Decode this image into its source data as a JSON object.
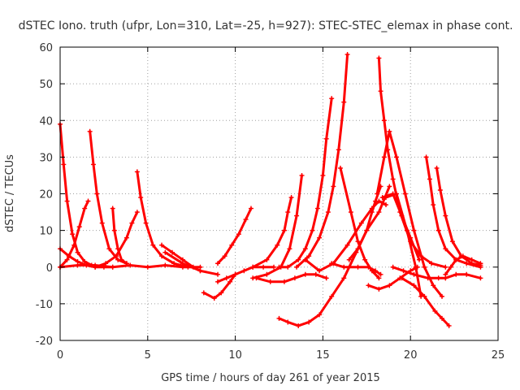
{
  "chart_data": {
    "type": "scatter",
    "title": "dSTEC Iono. truth (ufpr, Lon=310, Lat=-25, h=927): STEC-STEC_elemax in phase cont.",
    "xlabel": "GPS time / hours of day 261 of year 2015",
    "ylabel": "dSTEC  / TECUs",
    "xlim": [
      0,
      25
    ],
    "ylim": [
      -20,
      60
    ],
    "xticks": [
      0,
      5,
      10,
      15,
      20,
      25
    ],
    "yticks": [
      -20,
      -10,
      0,
      10,
      20,
      30,
      40,
      50,
      60
    ],
    "grid": true,
    "marker": "+",
    "color": "#ff0000",
    "series": [
      {
        "x": [
          0.0,
          0.2,
          0.4,
          0.7,
          1.0,
          1.4,
          1.8
        ],
        "y": [
          39,
          28,
          18,
          9,
          4,
          1.5,
          0.5
        ]
      },
      {
        "x": [
          1.7,
          1.9,
          2.1,
          2.4,
          2.8,
          3.3,
          3.8
        ],
        "y": [
          37,
          28,
          20,
          12,
          5,
          2,
          1
        ]
      },
      {
        "x": [
          3.0,
          3.1,
          3.3,
          3.5,
          3.8
        ],
        "y": [
          16,
          10,
          5,
          2,
          1
        ]
      },
      {
        "x": [
          4.4,
          4.6,
          4.9,
          5.3,
          5.8,
          6.5,
          7.3
        ],
        "y": [
          26,
          19,
          12,
          6,
          3,
          1,
          0
        ]
      },
      {
        "x": [
          0.0,
          0.4,
          0.8,
          1.1,
          1.4,
          1.6
        ],
        "y": [
          0,
          2,
          6,
          11,
          16,
          18
        ]
      },
      {
        "x": [
          0.0,
          0.5,
          1.0,
          1.5,
          2.0,
          2.5,
          3.0
        ],
        "y": [
          5,
          3,
          1.5,
          0.5,
          0,
          0,
          0
        ]
      },
      {
        "x": [
          2.0,
          2.6,
          3.2,
          3.8,
          4.1,
          4.4
        ],
        "y": [
          0,
          1,
          3,
          8,
          12,
          15
        ]
      },
      {
        "x": [
          0.0,
          1.0,
          2.0,
          3.0,
          4.0,
          5.0,
          6.0,
          7.0,
          8.0
        ],
        "y": [
          0,
          0.5,
          0.5,
          0,
          0.5,
          0,
          0.5,
          0,
          0
        ]
      },
      {
        "x": [
          5.8,
          6.4,
          7.0,
          7.6,
          8.0
        ],
        "y": [
          6,
          4,
          2,
          0,
          -1
        ]
      },
      {
        "x": [
          6.0,
          7.0,
          8.0,
          9.0
        ],
        "y": [
          4,
          1,
          -1,
          -2
        ]
      },
      {
        "x": [
          8.2,
          8.8,
          9.2,
          9.7,
          10.0
        ],
        "y": [
          -7,
          -8.5,
          -7,
          -4,
          -2
        ]
      },
      {
        "x": [
          9.0,
          9.4,
          9.8,
          10.2,
          10.6,
          10.9
        ],
        "y": [
          1,
          3,
          6,
          9,
          13,
          16
        ]
      },
      {
        "x": [
          9.0,
          9.5,
          10.0,
          10.5,
          11.0,
          11.6,
          12.2
        ],
        "y": [
          -4,
          -3,
          -2,
          -1,
          0,
          0,
          0
        ]
      },
      {
        "x": [
          11.0,
          11.8,
          12.4,
          12.8,
          13.0,
          13.2
        ],
        "y": [
          0,
          2,
          6,
          10,
          15,
          19
        ]
      },
      {
        "x": [
          11.0,
          11.8,
          12.6,
          13.1,
          13.5,
          13.8
        ],
        "y": [
          -3,
          -2,
          0,
          5,
          14,
          25
        ]
      },
      {
        "x": [
          11.2,
          12.0,
          12.8,
          13.4,
          14.0,
          14.6,
          15.2
        ],
        "y": [
          -3,
          -4,
          -4,
          -3,
          -2,
          -2,
          -3
        ]
      },
      {
        "x": [
          12.5,
          13.0,
          13.6,
          14.0,
          14.4,
          14.7,
          15.0,
          15.2,
          15.5
        ],
        "y": [
          0,
          0,
          2,
          5,
          10,
          16,
          25,
          35,
          46
        ]
      },
      {
        "x": [
          13.5,
          14.2,
          14.8,
          15.3,
          15.6,
          15.9,
          16.2,
          16.4
        ],
        "y": [
          0,
          3,
          8,
          15,
          22,
          32,
          45,
          58
        ]
      },
      {
        "x": [
          12.5,
          13.0,
          13.6,
          14.2,
          14.8,
          15.5,
          16.2,
          16.9,
          17.5,
          18.2,
          18.8
        ],
        "y": [
          -14,
          -15,
          -16,
          -15,
          -13,
          -8,
          -3,
          4,
          10,
          15,
          22
        ]
      },
      {
        "x": [
          14.0,
          14.8,
          15.6,
          16.4,
          17.2,
          17.8,
          18.2,
          18.6
        ],
        "y": [
          2,
          -1,
          1,
          6,
          12,
          16,
          18,
          17
        ]
      },
      {
        "x": [
          15.5,
          16.2,
          17.0,
          17.6,
          18.0,
          18.3
        ],
        "y": [
          1,
          0,
          0,
          0,
          -1,
          -2
        ]
      },
      {
        "x": [
          16.0,
          16.6,
          17.0,
          17.4,
          17.8,
          18.2
        ],
        "y": [
          27,
          15,
          7,
          2,
          -1,
          -3
        ]
      },
      {
        "x": [
          16.5,
          17.0,
          17.5,
          17.8,
          18.0,
          18.3
        ],
        "y": [
          2,
          5,
          10,
          15,
          18,
          22
        ]
      },
      {
        "x": [
          18.2,
          18.3,
          18.5,
          18.7,
          19.0,
          19.4,
          20.0,
          20.6,
          21.2,
          22.0
        ],
        "y": [
          57,
          48,
          40,
          32,
          24,
          15,
          7,
          3,
          1,
          0
        ]
      },
      {
        "x": [
          18.1,
          18.5,
          18.8,
          19.2,
          19.7,
          20.2,
          20.8,
          21.3,
          21.8
        ],
        "y": [
          20,
          30,
          37,
          30,
          20,
          10,
          0,
          -5,
          -8
        ]
      },
      {
        "x": [
          17.6,
          18.2,
          18.8,
          19.4,
          20.0,
          20.4
        ],
        "y": [
          -5,
          -6,
          -5,
          -3,
          -1,
          0
        ]
      },
      {
        "x": [
          18.4,
          19.0,
          19.5,
          20.0,
          20.5
        ],
        "y": [
          19,
          20,
          14,
          8,
          2
        ]
      },
      {
        "x": [
          18.6,
          19.2,
          19.8,
          20.3,
          20.6
        ],
        "y": [
          19,
          20,
          10,
          0,
          -8
        ]
      },
      {
        "x": [
          19.0,
          19.6,
          20.2,
          21.0,
          21.6,
          22.0
        ],
        "y": [
          0,
          -1,
          -2,
          -3,
          -3,
          -3
        ]
      },
      {
        "x": [
          19.5,
          20.2,
          20.8,
          21.4,
          21.8,
          22.2
        ],
        "y": [
          -3,
          -5,
          -8,
          -12,
          -14,
          -16
        ]
      },
      {
        "x": [
          20.9,
          21.1,
          21.3,
          21.6,
          22.0,
          22.6,
          23.2,
          24.0
        ],
        "y": [
          30,
          24,
          17,
          10,
          5,
          2,
          1,
          0
        ]
      },
      {
        "x": [
          21.5,
          21.7,
          22.0,
          22.4,
          22.9,
          23.5,
          24.0
        ],
        "y": [
          27,
          21,
          14,
          7,
          3,
          1,
          0.5
        ]
      },
      {
        "x": [
          22.0,
          22.6,
          23.2,
          24.0
        ],
        "y": [
          -3,
          -2,
          -2,
          -3
        ]
      },
      {
        "x": [
          22.0,
          22.3,
          22.6,
          23.0,
          23.5,
          24.0
        ],
        "y": [
          -2,
          0,
          2,
          3,
          2,
          1
        ]
      }
    ]
  }
}
